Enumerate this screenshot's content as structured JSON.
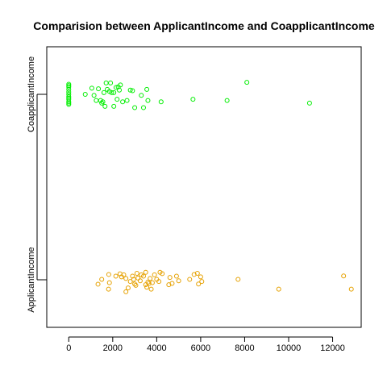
{
  "chart_data": {
    "type": "scatter",
    "title": "Comparision between ApplicantIncome and CoapplicantIncome",
    "xlabel": "",
    "ylabel": "",
    "xlim": [
      -1000,
      13300
    ],
    "x_ticks": [
      0,
      2000,
      4000,
      6000,
      8000,
      10000,
      12000
    ],
    "x_tick_labels": [
      "0",
      "2000",
      "4000",
      "6000",
      "8000",
      "10000",
      "12000"
    ],
    "grid": false,
    "legend": "none",
    "strip_categories": [
      "ApplicantIncome",
      "CoapplicantIncome"
    ],
    "series": [
      {
        "category_index": 0,
        "color": "#E6A100",
        "jitter": [
          -0.5,
          0.3
        ],
        "points": [
          [
            1330,
            -0.34
          ],
          [
            1500,
            0.03
          ],
          [
            1810,
            -0.73
          ],
          [
            1820,
            0.41
          ],
          [
            1850,
            -0.23
          ],
          [
            2140,
            0.28
          ],
          [
            2330,
            0.46
          ],
          [
            2400,
            0.23
          ],
          [
            2500,
            0.38
          ],
          [
            2600,
            -0.93
          ],
          [
            2600,
            0.1
          ],
          [
            2700,
            -0.63
          ],
          [
            2800,
            -0.13
          ],
          [
            2900,
            0.28
          ],
          [
            2950,
            0.03
          ],
          [
            3000,
            -0.33
          ],
          [
            3050,
            -0.43
          ],
          [
            3100,
            0.5
          ],
          [
            3150,
            0.13
          ],
          [
            3250,
            -0.08
          ],
          [
            3300,
            0.38
          ],
          [
            3400,
            0.28
          ],
          [
            3500,
            -0.38
          ],
          [
            3500,
            0.58
          ],
          [
            3550,
            -0.58
          ],
          [
            3600,
            -0.18
          ],
          [
            3650,
            -0.28
          ],
          [
            3700,
            0.1
          ],
          [
            3750,
            -0.73
          ],
          [
            3800,
            -0.23
          ],
          [
            3900,
            0.38
          ],
          [
            4000,
            0.03
          ],
          [
            4100,
            -0.13
          ],
          [
            4150,
            0.58
          ],
          [
            4250,
            0.48
          ],
          [
            4550,
            -0.38
          ],
          [
            4600,
            0.18
          ],
          [
            4700,
            -0.28
          ],
          [
            4900,
            0.28
          ],
          [
            5000,
            -0.08
          ],
          [
            5500,
            0.03
          ],
          [
            5700,
            0.41
          ],
          [
            5850,
            0.5
          ],
          [
            5900,
            -0.33
          ],
          [
            6000,
            0.23
          ],
          [
            6050,
            -0.13
          ],
          [
            7700,
            0.03
          ],
          [
            9550,
            -0.73
          ],
          [
            12500,
            0.3
          ],
          [
            12850,
            -0.73
          ]
        ]
      },
      {
        "category_index": 1,
        "color": "#00EE00",
        "jitter": [
          -0.6,
          0.4
        ],
        "points": [
          [
            0,
            0.78
          ],
          [
            0,
            0.58
          ],
          [
            0,
            0.38
          ],
          [
            0,
            0.18
          ],
          [
            0,
            0.0
          ],
          [
            0,
            -0.18
          ],
          [
            0,
            -0.38
          ],
          [
            0,
            -0.58
          ],
          [
            0,
            -0.78
          ],
          [
            0,
            0.68
          ],
          [
            0,
            -0.28
          ],
          [
            0,
            -0.68
          ],
          [
            750,
            0.0
          ],
          [
            1050,
            0.48
          ],
          [
            1150,
            -0.08
          ],
          [
            1250,
            -0.48
          ],
          [
            1350,
            0.43
          ],
          [
            1450,
            -0.48
          ],
          [
            1500,
            -0.68
          ],
          [
            1550,
            -0.58
          ],
          [
            1600,
            0.13
          ],
          [
            1650,
            -0.93
          ],
          [
            1700,
            0.88
          ],
          [
            1750,
            0.38
          ],
          [
            1850,
            0.23
          ],
          [
            1900,
            0.88
          ],
          [
            1950,
            0.13
          ],
          [
            2050,
            0.13
          ],
          [
            2050,
            -0.93
          ],
          [
            2150,
            0.53
          ],
          [
            2200,
            -0.38
          ],
          [
            2250,
            0.58
          ],
          [
            2300,
            0.33
          ],
          [
            2350,
            0.73
          ],
          [
            2450,
            -0.58
          ],
          [
            2650,
            -0.48
          ],
          [
            2800,
            0.33
          ],
          [
            2900,
            0.28
          ],
          [
            3000,
            -1.03
          ],
          [
            3300,
            -0.08
          ],
          [
            3400,
            -1.03
          ],
          [
            3550,
            0.38
          ],
          [
            3600,
            -0.48
          ],
          [
            4200,
            -0.58
          ],
          [
            5650,
            -0.38
          ],
          [
            7200,
            -0.48
          ],
          [
            8100,
            0.93
          ],
          [
            10950,
            -0.68
          ]
        ]
      }
    ]
  }
}
